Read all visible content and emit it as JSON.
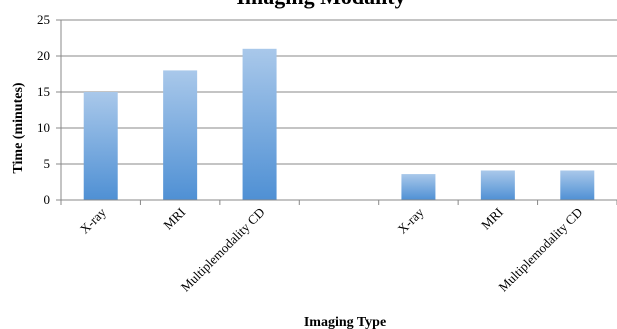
{
  "chart_data": {
    "type": "bar",
    "title": "Imaging Modality",
    "xlabel": "Imaging Type",
    "ylabel": "Time (minutes)",
    "ylim": [
      0,
      25
    ],
    "yticks": [
      0,
      5,
      10,
      15,
      20,
      25
    ],
    "grid": true,
    "legend": "none",
    "categories": [
      "X-ray",
      "MRI",
      "Multiplemodality CD",
      "",
      "X-ray",
      "MRI",
      "Multiplemodality CD"
    ],
    "values": [
      15,
      18,
      21,
      null,
      3.6,
      4.1,
      4.1
    ],
    "colors": {
      "bar_top": "#a9c8ea",
      "bar_bottom": "#4f90d4",
      "grid": "#888888",
      "axis": "#888888"
    }
  }
}
